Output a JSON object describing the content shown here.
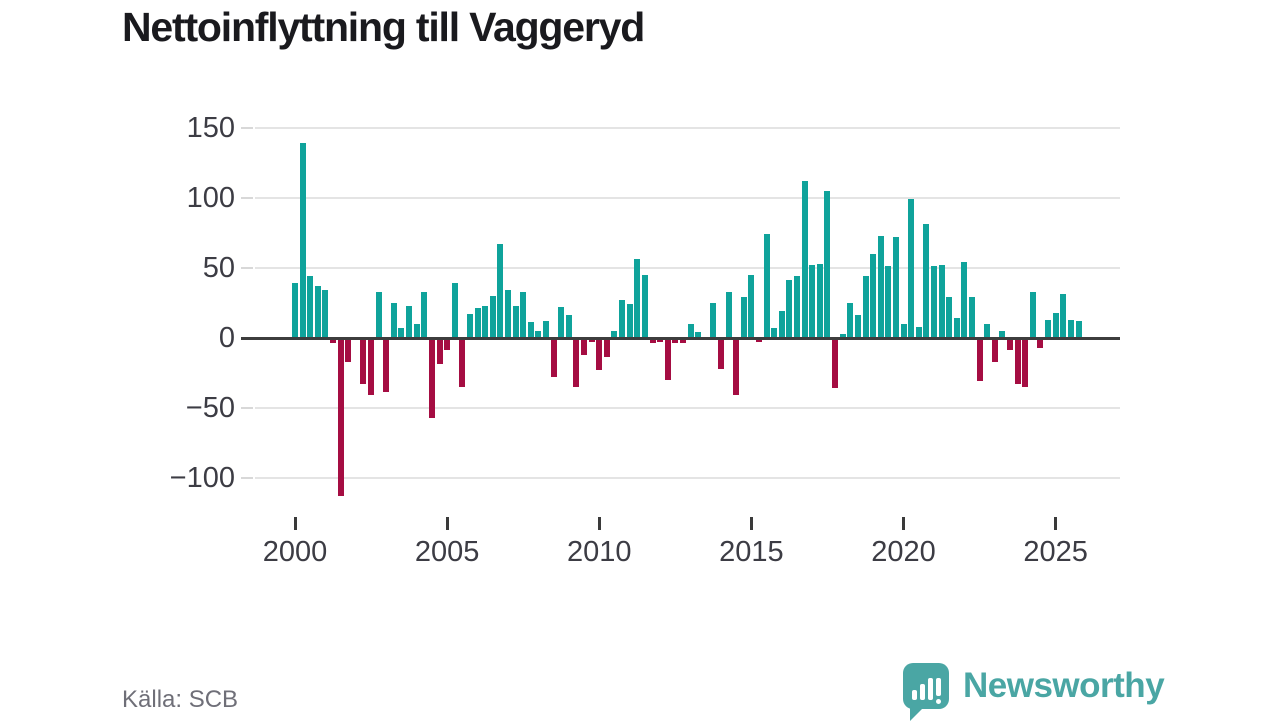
{
  "title": "Nettoinflyttning till Vaggeryd",
  "source": "Källa: SCB",
  "logo": {
    "text": "Newsworthy"
  },
  "colors": {
    "positive_bar": "#0FA39B",
    "negative_bar": "#A50D42",
    "logo_teal": "#4AA6A4",
    "axis_text": "#3C3C44",
    "title_text": "#1A1A1E",
    "source_text": "#6F6F78",
    "gridline": "#E4E4E4",
    "zero_line": "#3D3D3D"
  },
  "chart_data": {
    "type": "bar",
    "title": "Nettoinflyttning till Vaggeryd",
    "series_name": "Nettoinflyttning per kvartal",
    "x_unit": "quarter",
    "period_start": "2000 Q1",
    "period_end": "2025 Q4",
    "grid": true,
    "legend": false,
    "x_axis": {
      "tick_labels": [
        "2000",
        "2005",
        "2010",
        "2015",
        "2020",
        "2025"
      ]
    },
    "y_axis": {
      "tick_labels": [
        "150",
        "100",
        "50",
        "0",
        "−50",
        "−100"
      ],
      "tick_values": [
        150,
        100,
        50,
        0,
        -50,
        -100
      ],
      "range": [
        -123,
        157
      ]
    },
    "years": [
      {
        "year": 2000,
        "values": [
          39,
          139,
          44,
          37
        ]
      },
      {
        "year": 2001,
        "values": [
          34,
          -4,
          -113,
          -17
        ]
      },
      {
        "year": 2002,
        "values": [
          0,
          -33,
          -41,
          33
        ]
      },
      {
        "year": 2003,
        "values": [
          -39,
          25,
          7,
          23
        ]
      },
      {
        "year": 2004,
        "values": [
          10,
          33,
          -57,
          -19
        ]
      },
      {
        "year": 2005,
        "values": [
          -9,
          39,
          -35,
          17
        ]
      },
      {
        "year": 2006,
        "values": [
          21,
          23,
          30,
          67
        ]
      },
      {
        "year": 2007,
        "values": [
          34,
          23,
          33,
          11
        ]
      },
      {
        "year": 2008,
        "values": [
          5,
          12,
          -28,
          22
        ]
      },
      {
        "year": 2009,
        "values": [
          16,
          -35,
          -12,
          -3
        ]
      },
      {
        "year": 2010,
        "values": [
          -23,
          -14,
          5,
          27
        ]
      },
      {
        "year": 2011,
        "values": [
          24,
          56,
          45,
          -4
        ]
      },
      {
        "year": 2012,
        "values": [
          -3,
          -30,
          -4,
          -4
        ]
      },
      {
        "year": 2013,
        "values": [
          10,
          4,
          0,
          25
        ]
      },
      {
        "year": 2014,
        "values": [
          -22,
          33,
          -41,
          29
        ]
      },
      {
        "year": 2015,
        "values": [
          45,
          -3,
          74,
          7
        ]
      },
      {
        "year": 2016,
        "values": [
          19,
          41,
          44,
          112
        ]
      },
      {
        "year": 2017,
        "values": [
          52,
          53,
          105,
          -36
        ]
      },
      {
        "year": 2018,
        "values": [
          3,
          25,
          16,
          44
        ]
      },
      {
        "year": 2019,
        "values": [
          60,
          73,
          51,
          72
        ]
      },
      {
        "year": 2020,
        "values": [
          10,
          99,
          8,
          81
        ]
      },
      {
        "year": 2021,
        "values": [
          51,
          52,
          29,
          14
        ]
      },
      {
        "year": 2022,
        "values": [
          54,
          29,
          -31,
          10
        ]
      },
      {
        "year": 2023,
        "values": [
          -17,
          5,
          -9,
          -33
        ]
      },
      {
        "year": 2024,
        "values": [
          -35,
          33,
          -7,
          13
        ]
      },
      {
        "year": 2025,
        "values": [
          18,
          31,
          13,
          12
        ]
      }
    ]
  }
}
